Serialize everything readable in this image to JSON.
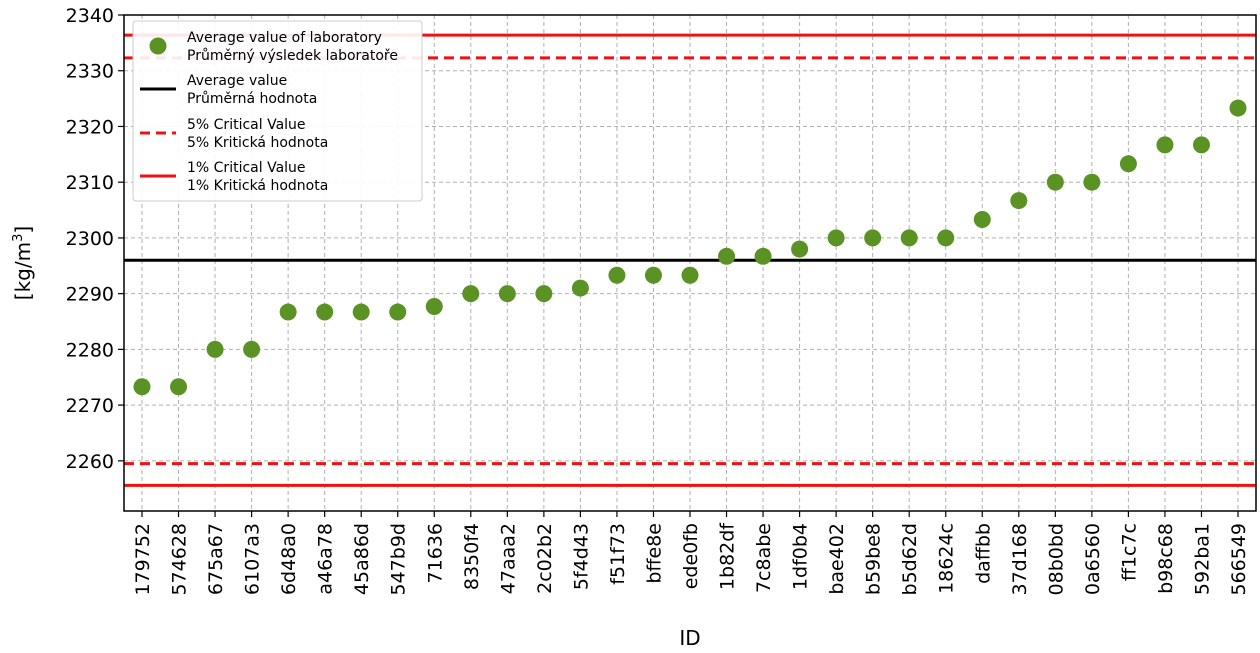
{
  "chart_data": {
    "type": "scatter",
    "xlabel": "ID",
    "ylabel_main": "[kg/m",
    "ylabel_sup": "3",
    "ylabel_end": "]",
    "ylim": [
      2251,
      2340
    ],
    "yticks": [
      2260,
      2270,
      2280,
      2290,
      2300,
      2310,
      2320,
      2330,
      2340
    ],
    "grid": true,
    "legend_position": "top-left",
    "categories": [
      "179752",
      "574628",
      "675a67",
      "6107a3",
      "6d48a0",
      "a46a78",
      "45a86d",
      "547b9d",
      "71636",
      "8350f4",
      "47aaa2",
      "2c02b2",
      "5f4d43",
      "f51f73",
      "bffe8e",
      "ede0fb",
      "1b82df",
      "7c8abe",
      "1df0b4",
      "bae402",
      "b59be8",
      "b5d62d",
      "18624c",
      "daffbb",
      "37d168",
      "08b0bd",
      "0a6560",
      "ff1c7c",
      "b98c68",
      "592ba1",
      "566549"
    ],
    "values": [
      2273.3,
      2273.3,
      2280,
      2280,
      2286.7,
      2286.7,
      2286.7,
      2286.7,
      2287.7,
      2290,
      2290,
      2290,
      2291,
      2293.3,
      2293.3,
      2293.3,
      2296.7,
      2296.7,
      2298,
      2300,
      2300,
      2300,
      2300,
      2303.3,
      2306.7,
      2310,
      2310,
      2313.3,
      2316.7,
      2316.7,
      2323.3
    ],
    "reference_lines": {
      "average": 2296,
      "critical_5_upper": 2332.3,
      "critical_5_lower": 2259.5,
      "critical_1_upper": 2336.4,
      "critical_1_lower": 2255.6
    },
    "colors": {
      "points": "#5a9324",
      "average": "#000000",
      "critical": "#ee1111"
    },
    "legend": [
      {
        "marker": "dot",
        "line1": "Average value of laboratory",
        "line2": "Průměrný výsledek laboratoře"
      },
      {
        "marker": "solid-black",
        "line1": "Average value",
        "line2": "Průměrná hodnota"
      },
      {
        "marker": "dashed-red",
        "line1": "5% Critical Value",
        "line2": "5% Kritická hodnota"
      },
      {
        "marker": "solid-red",
        "line1": "1% Critical Value",
        "line2": "1% Kritická hodnota"
      }
    ]
  }
}
